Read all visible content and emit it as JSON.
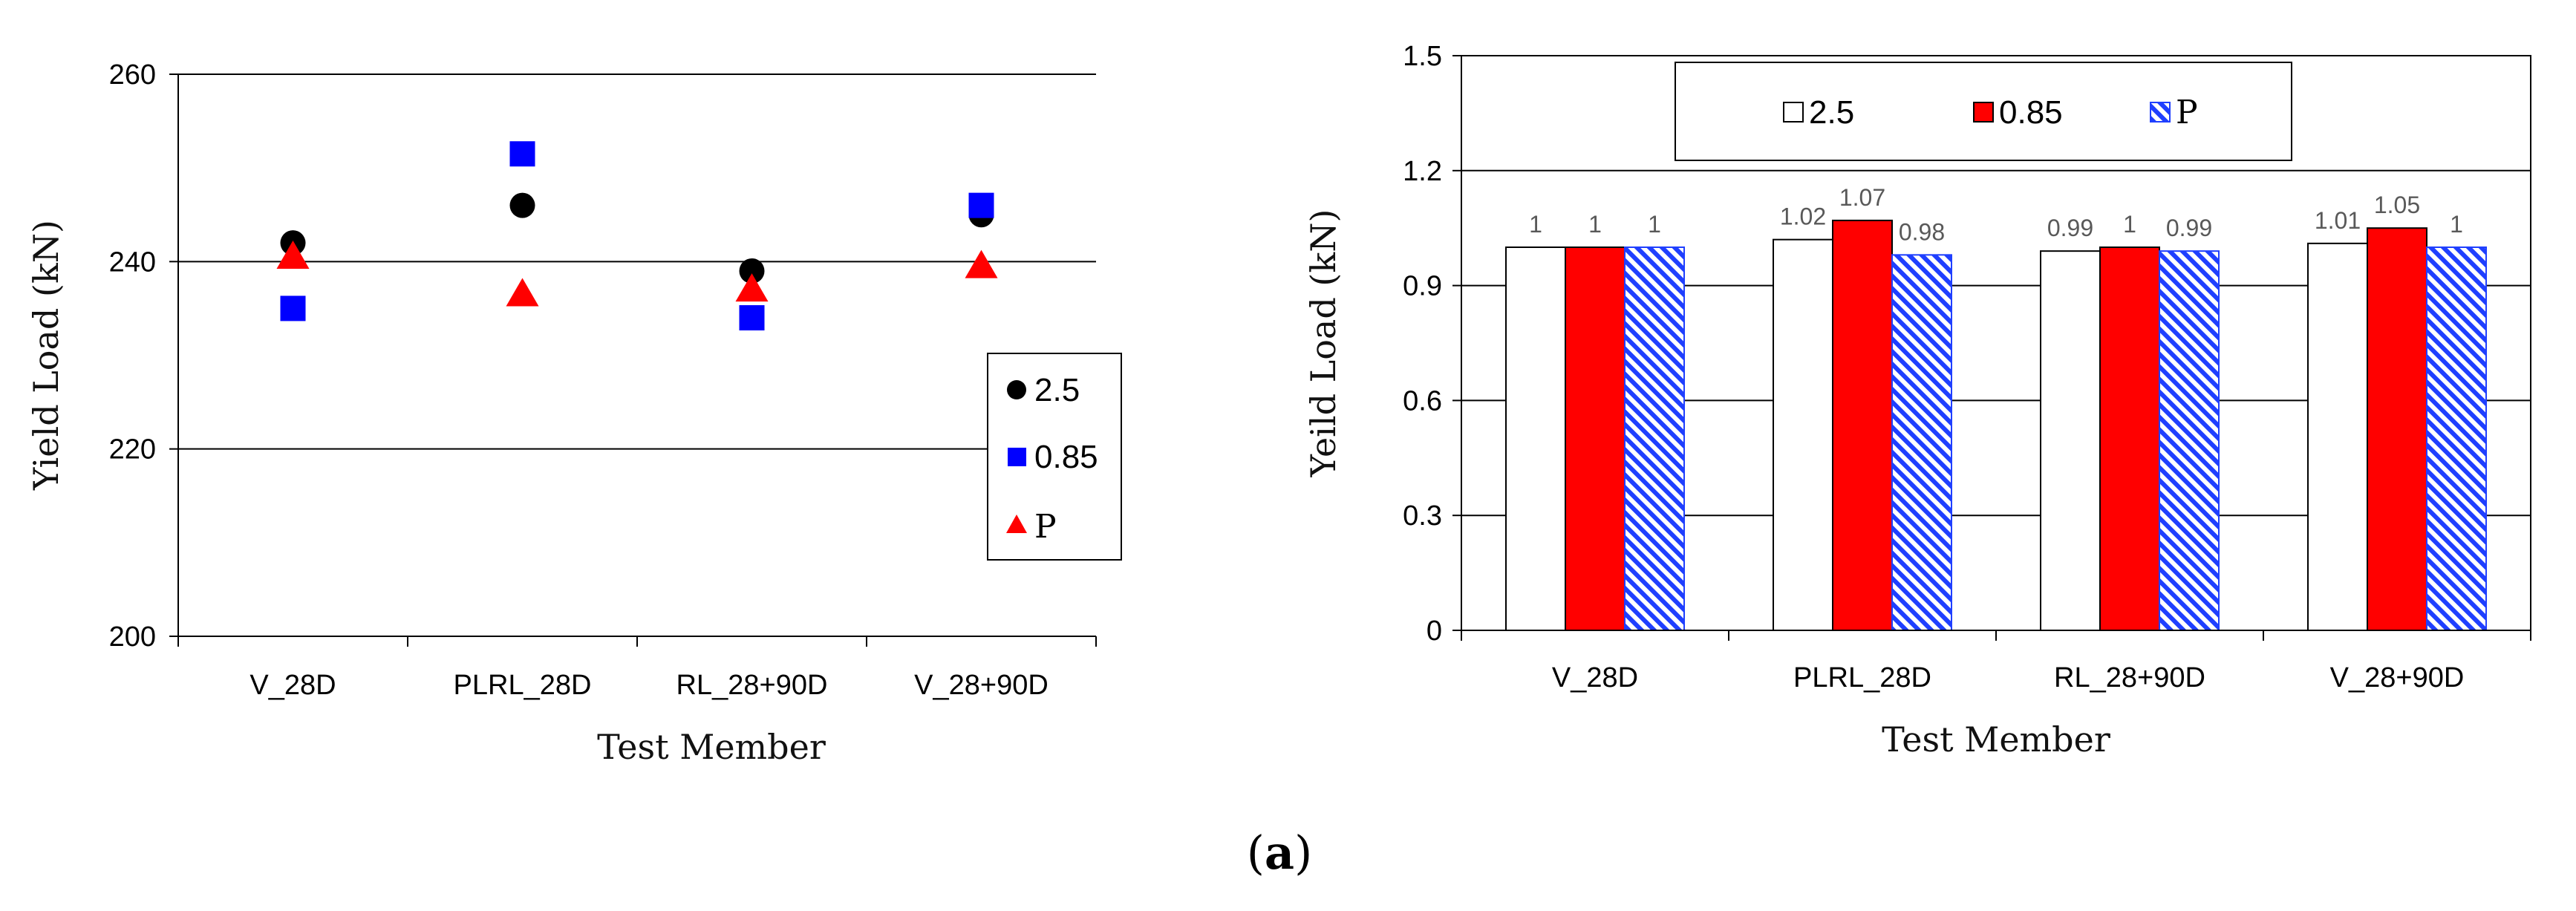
{
  "colors": {
    "black": "#000000",
    "blue": "#0000ff",
    "red": "#ff0000",
    "hatch": "#1f3fff",
    "grid": "#000000"
  },
  "caption": {
    "open": "(",
    "label": "a",
    "close": ")"
  },
  "chart_data": [
    {
      "type": "scatter",
      "title": "",
      "xlabel": "Test Member",
      "ylabel": "Yield Load  (kN)",
      "ylim": [
        200,
        260
      ],
      "yticks": [
        200,
        220,
        240,
        260
      ],
      "grid": true,
      "categories": [
        "V_28D",
        "PLRL_28D",
        "RL_28+90D",
        "V_28+90D"
      ],
      "legend_position": "right",
      "series": [
        {
          "name": "2.5",
          "marker": "circle",
          "color": "#000000",
          "values": [
            242,
            246,
            239,
            245
          ]
        },
        {
          "name": "0.85",
          "marker": "square",
          "color": "#0000ff",
          "values": [
            235,
            251.5,
            234,
            246
          ]
        },
        {
          "name": "P",
          "marker": "triangle",
          "color": "#ff0000",
          "values": [
            240.5,
            236.5,
            237,
            239.5
          ]
        }
      ]
    },
    {
      "type": "bar",
      "title": "",
      "xlabel": "Test Member",
      "ylabel": "Yeild Load  (kN)",
      "ylim": [
        0,
        1.5
      ],
      "yticks": [
        "0",
        "0.3",
        "0.6",
        "0.9",
        "1.2",
        "1.5"
      ],
      "grid": true,
      "categories": [
        "V_28D",
        "PLRL_28D",
        "RL_28+90D",
        "V_28+90D"
      ],
      "legend_position": "top",
      "series": [
        {
          "name": "2.5",
          "fill": "white",
          "values": [
            1,
            1.02,
            0.99,
            1.01
          ],
          "labels": [
            "1",
            "1.02",
            "0.99",
            "1.01"
          ]
        },
        {
          "name": "0.85",
          "fill": "red",
          "values": [
            1,
            1.07,
            1,
            1.05
          ],
          "labels": [
            "1",
            "1.07",
            "1",
            "1.05"
          ]
        },
        {
          "name": "P",
          "fill": "hatch",
          "values": [
            1,
            0.98,
            0.99,
            1
          ],
          "labels": [
            "1",
            "0.98",
            "0.99",
            "1"
          ]
        }
      ]
    }
  ]
}
